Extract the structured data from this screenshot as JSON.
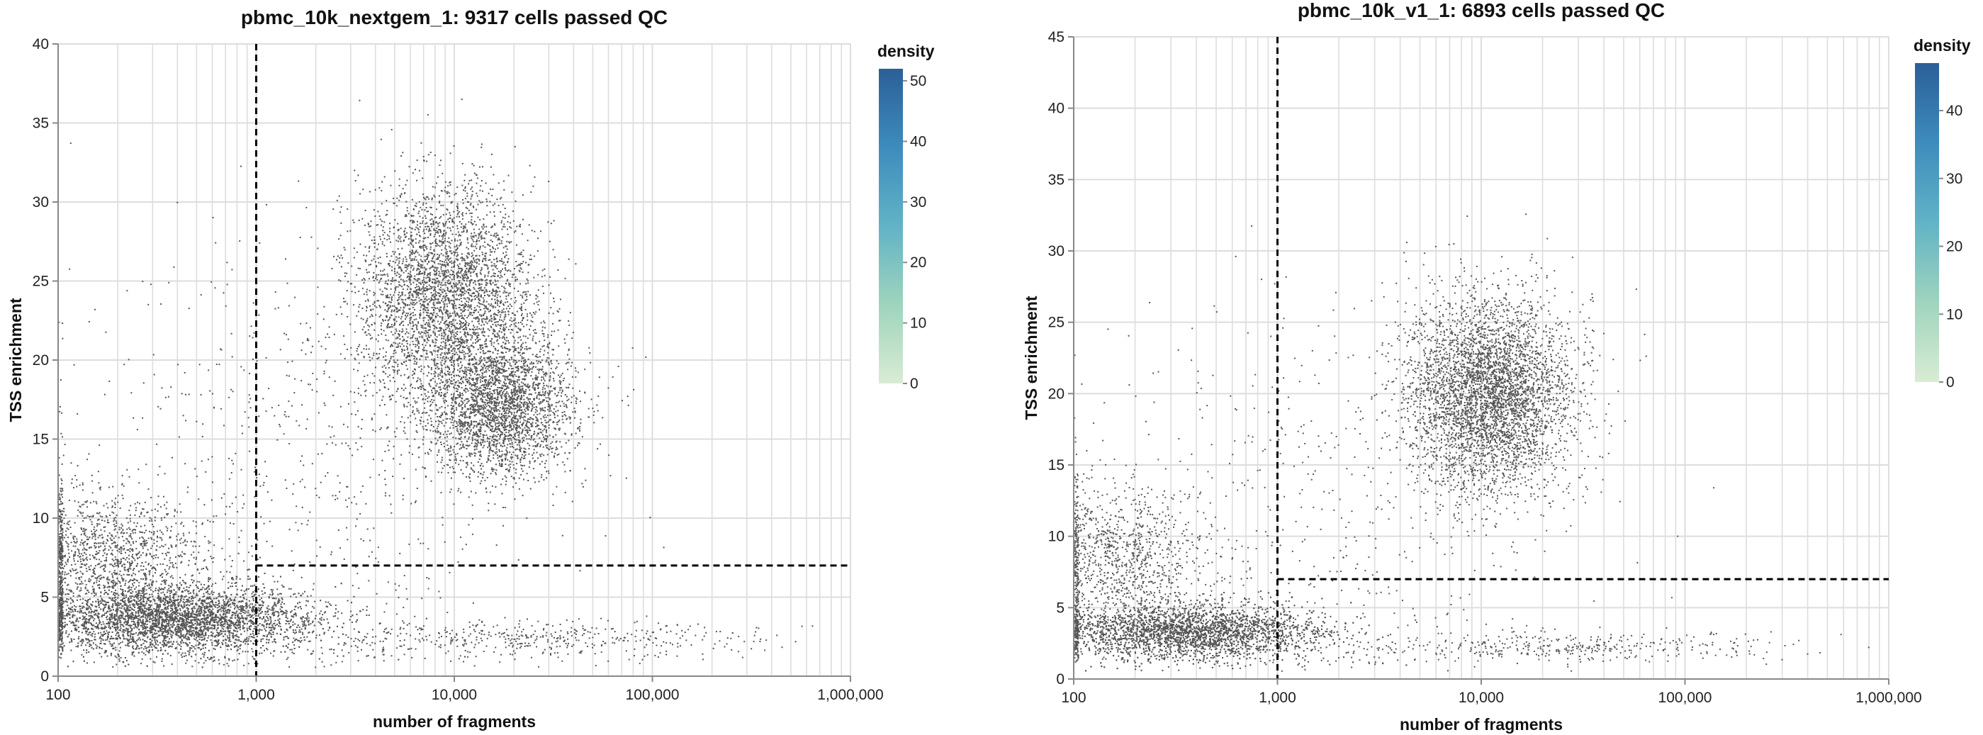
{
  "chart_data": [
    {
      "type": "scatter",
      "title": "pbmc_10k_nextgem_1: 9317 cells passed QC",
      "xlabel": "number of fragments",
      "ylabel": "TSS enrichment",
      "x_scale": "log",
      "xlim": [
        100,
        1000000
      ],
      "ylim": [
        0,
        40
      ],
      "x_ticks": [
        100,
        1000,
        10000,
        100000,
        1000000
      ],
      "x_tick_labels": [
        "100",
        "1,000",
        "10,000",
        "100,000",
        "1,000,000"
      ],
      "y_ticks": [
        0,
        5,
        10,
        15,
        20,
        25,
        30,
        35,
        40
      ],
      "y_tick_labels": [
        "0",
        "5",
        "10",
        "15",
        "20",
        "25",
        "30",
        "35",
        "40"
      ],
      "grid": true,
      "point_color": "#555555",
      "thresholds": {
        "x": 1000,
        "y": 7
      },
      "clusters": [
        {
          "x_center": 400,
          "y_center": 3.6,
          "x_spread": 0.35,
          "y_spread": 1.1,
          "count": 5200
        },
        {
          "x_center": 9000,
          "y_center": 24,
          "x_spread": 0.22,
          "y_spread": 3.5,
          "count": 3600
        },
        {
          "x_center": 17000,
          "y_center": 17,
          "x_spread": 0.18,
          "y_spread": 2.2,
          "count": 2600
        },
        {
          "x_center": 180,
          "y_center": 7.5,
          "x_spread": 0.25,
          "y_spread": 2.0,
          "count": 1400
        },
        {
          "x_center": 2000,
          "y_center": 14,
          "x_spread": 0.6,
          "y_spread": 7.0,
          "count": 700
        },
        {
          "x_center": 20000,
          "y_center": 2.4,
          "x_spread": 0.6,
          "y_spread": 0.6,
          "count": 500
        }
      ],
      "legend": {
        "title": "density",
        "min": 0,
        "max": 52,
        "ticks": [
          0,
          10,
          20,
          30,
          40,
          50
        ],
        "tick_labels": [
          "0",
          "10",
          "20",
          "30",
          "40",
          "50"
        ],
        "colors": [
          "#d9ecd4",
          "#9fd4bd",
          "#61b3c6",
          "#3d8cbd",
          "#2b5f98"
        ],
        "placement": "right"
      }
    },
    {
      "type": "scatter",
      "title": "pbmc_10k_v1_1: 6893 cells passed QC",
      "xlabel": "number of fragments",
      "ylabel": "TSS enrichment",
      "x_scale": "log",
      "xlim": [
        100,
        1000000
      ],
      "ylim": [
        0,
        45
      ],
      "x_ticks": [
        100,
        1000,
        10000,
        100000,
        1000000
      ],
      "x_tick_labels": [
        "100",
        "1,000",
        "10,000",
        "100,000",
        "1,000,000"
      ],
      "y_ticks": [
        0,
        5,
        10,
        15,
        20,
        25,
        30,
        35,
        40,
        45
      ],
      "y_tick_labels": [
        "0",
        "5",
        "10",
        "15",
        "20",
        "25",
        "30",
        "35",
        "40",
        "45"
      ],
      "grid": true,
      "point_color": "#555555",
      "thresholds": {
        "x": 1000,
        "y": 7
      },
      "clusters": [
        {
          "x_center": 380,
          "y_center": 3.3,
          "x_spread": 0.33,
          "y_spread": 1.0,
          "count": 4600
        },
        {
          "x_center": 11000,
          "y_center": 20,
          "x_spread": 0.2,
          "y_spread": 3.3,
          "count": 4200
        },
        {
          "x_center": 170,
          "y_center": 8.5,
          "x_spread": 0.22,
          "y_spread": 2.5,
          "count": 1100
        },
        {
          "x_center": 1800,
          "y_center": 13,
          "x_spread": 0.6,
          "y_spread": 7.0,
          "count": 500
        },
        {
          "x_center": 25000,
          "y_center": 2.3,
          "x_spread": 0.55,
          "y_spread": 0.5,
          "count": 400
        }
      ],
      "legend": {
        "title": "density",
        "min": 0,
        "max": 47,
        "ticks": [
          0,
          10,
          20,
          30,
          40
        ],
        "tick_labels": [
          "0",
          "10",
          "20",
          "30",
          "40"
        ],
        "colors": [
          "#d9ecd4",
          "#9fd4bd",
          "#61b3c6",
          "#3d8cbd",
          "#2b5f98"
        ],
        "placement": "right"
      }
    }
  ]
}
